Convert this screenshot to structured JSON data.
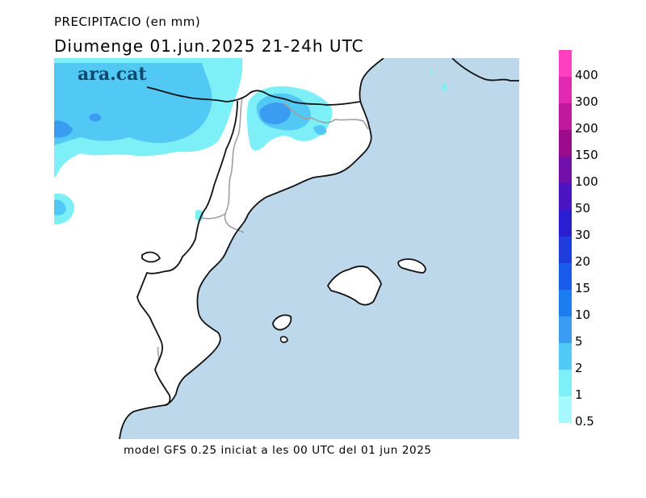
{
  "title": "PRECIPITACIO (en mm)",
  "subtitle": "Diumenge  01.jun.2025 21-24h UTC",
  "footer": "model GFS 0.25 iniciat a les 00 UTC del 01 jun 2025",
  "logo_text": "ara.cat",
  "colors": {
    "sea": "#bcd8ea",
    "land": "#ffffff",
    "coast": "#111111",
    "border": "#a0a0a0",
    "precip_light": "#7deff7",
    "precip_mid": "#52c8f5",
    "precip_heavy": "#3a9df2"
  },
  "legend": {
    "levels": [
      {
        "label": "400",
        "color": "#ff40c0"
      },
      {
        "label": "300",
        "color": "#e22ab0"
      },
      {
        "label": "200",
        "color": "#c0189a"
      },
      {
        "label": "150",
        "color": "#9a0c8c"
      },
      {
        "label": "100",
        "color": "#7211a9"
      },
      {
        "label": "50",
        "color": "#4a14c2"
      },
      {
        "label": "30",
        "color": "#2a1ed2"
      },
      {
        "label": "20",
        "color": "#1f3cdc"
      },
      {
        "label": "15",
        "color": "#1a5cea"
      },
      {
        "label": "10",
        "color": "#1d7cf0"
      },
      {
        "label": "5",
        "color": "#3a9df2"
      },
      {
        "label": "2",
        "color": "#52c8f5"
      },
      {
        "label": "1",
        "color": "#7deff7"
      },
      {
        "label": "0.5",
        "color": "#a6faff"
      }
    ]
  }
}
